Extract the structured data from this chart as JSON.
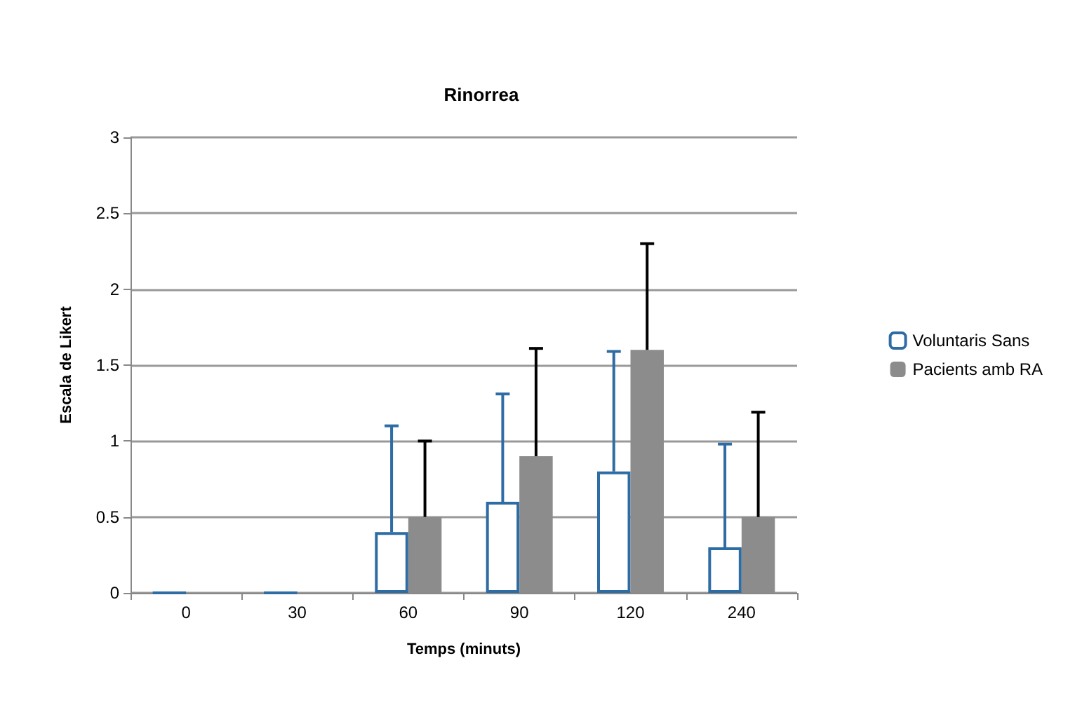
{
  "chart_data": {
    "type": "bar",
    "title": "Rinorrea",
    "xlabel": "Temps (minuts)",
    "ylabel": "Escala de Likert",
    "categories": [
      "0",
      "30",
      "60",
      "90",
      "120",
      "240"
    ],
    "series": [
      {
        "name": "Voluntaris Sans",
        "color": "#2e6ca4",
        "values": [
          0,
          0,
          0.4,
          0.6,
          0.8,
          0.3
        ],
        "errors": [
          null,
          null,
          [
            0.4,
            1.1
          ],
          [
            0.6,
            1.31
          ],
          [
            0.8,
            1.59
          ],
          [
            0.3,
            0.98
          ]
        ]
      },
      {
        "name": "Pacients amb RA",
        "color": "#8c8c8c",
        "values": [
          0,
          0,
          0.5,
          0.9,
          1.6,
          0.5
        ],
        "errors": [
          null,
          null,
          [
            0.5,
            1.0
          ],
          [
            0.9,
            1.61
          ],
          [
            1.6,
            2.3
          ],
          [
            0.5,
            1.19
          ]
        ]
      }
    ],
    "ylim": [
      0,
      3
    ],
    "yticks": [
      0,
      0.5,
      1,
      1.5,
      2,
      2.5,
      3
    ],
    "grid": "y",
    "legend": "right"
  }
}
